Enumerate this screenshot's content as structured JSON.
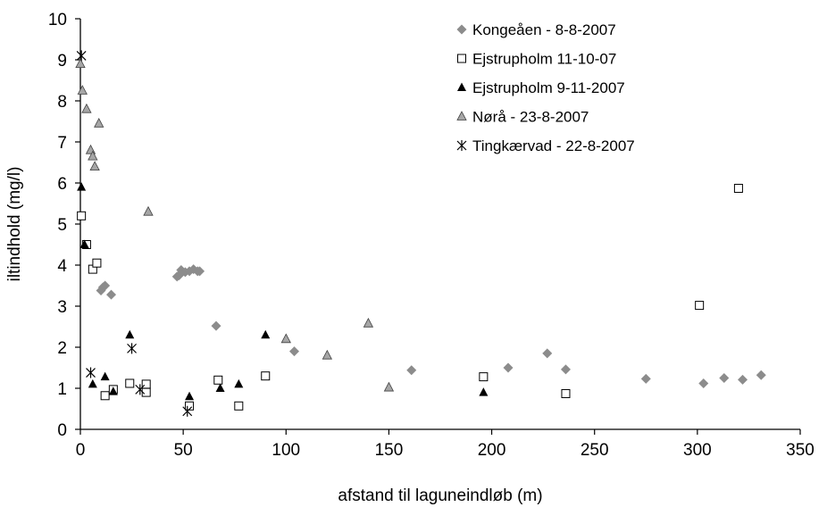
{
  "chart_data": {
    "type": "scatter",
    "xlabel": "afstand til laguneindløb (m)",
    "ylabel": "iltindhold (mg/l)",
    "xlim": [
      0,
      350
    ],
    "ylim": [
      0,
      10
    ],
    "x_ticks": [
      "0",
      "50",
      "100",
      "150",
      "200",
      "250",
      "300",
      "350"
    ],
    "y_ticks": [
      "0",
      "1",
      "2",
      "3",
      "4",
      "5",
      "6",
      "7",
      "8",
      "9",
      "10"
    ],
    "grid": false,
    "legend_position": "top-right",
    "series": [
      {
        "name": "Kongeåen - 8-8-2007",
        "marker": "diamond",
        "color": "#8c8c8c",
        "points": [
          [
            10,
            3.38
          ],
          [
            11,
            3.46
          ],
          [
            12,
            3.5
          ],
          [
            15,
            3.28
          ],
          [
            47,
            3.72
          ],
          [
            48,
            3.75
          ],
          [
            49,
            3.88
          ],
          [
            51,
            3.83
          ],
          [
            53,
            3.85
          ],
          [
            55,
            3.9
          ],
          [
            57,
            3.85
          ],
          [
            58,
            3.85
          ],
          [
            66,
            2.52
          ],
          [
            104,
            1.9
          ],
          [
            161,
            1.44
          ],
          [
            208,
            1.5
          ],
          [
            227,
            1.85
          ],
          [
            236,
            1.46
          ],
          [
            275,
            1.23
          ],
          [
            303,
            1.12
          ],
          [
            313,
            1.25
          ],
          [
            322,
            1.21
          ],
          [
            331,
            1.32
          ]
        ]
      },
      {
        "name": "Ejstrupholm 11-10-07",
        "marker": "square-open",
        "color": "#000000",
        "points": [
          [
            0.5,
            5.2
          ],
          [
            3,
            4.5
          ],
          [
            6,
            3.9
          ],
          [
            8,
            4.05
          ],
          [
            12,
            0.82
          ],
          [
            16,
            0.97
          ],
          [
            24,
            1.12
          ],
          [
            32,
            1.1
          ],
          [
            32,
            0.9
          ],
          [
            53,
            0.57
          ],
          [
            67,
            1.2
          ],
          [
            77,
            0.57
          ],
          [
            90,
            1.3
          ],
          [
            196,
            1.28
          ],
          [
            236,
            0.87
          ],
          [
            301,
            3.02
          ],
          [
            320,
            5.87
          ]
        ]
      },
      {
        "name": "Ejstrupholm 9-11-2007",
        "marker": "triangle-filled",
        "color": "#000000",
        "points": [
          [
            0.5,
            5.9
          ],
          [
            2,
            4.5
          ],
          [
            6,
            1.1
          ],
          [
            12,
            1.28
          ],
          [
            16,
            0.92
          ],
          [
            24,
            2.3
          ],
          [
            53,
            0.8
          ],
          [
            68,
            1.0
          ],
          [
            77,
            1.1
          ],
          [
            90,
            2.3
          ],
          [
            196,
            0.9
          ]
        ]
      },
      {
        "name": "Nørå - 23-8-2007",
        "marker": "triangle-gray",
        "color": "#a6a6a6",
        "points": [
          [
            0,
            8.9
          ],
          [
            1,
            8.25
          ],
          [
            3,
            7.8
          ],
          [
            5,
            6.8
          ],
          [
            6,
            6.65
          ],
          [
            7,
            6.4
          ],
          [
            9,
            7.45
          ],
          [
            33,
            5.3
          ],
          [
            100,
            2.2
          ],
          [
            120,
            1.8
          ],
          [
            140,
            2.58
          ],
          [
            150,
            1.02
          ]
        ]
      },
      {
        "name": "Tingkærvad - 22-8-2007",
        "marker": "asterisk",
        "color": "#000000",
        "points": [
          [
            0.5,
            9.1
          ],
          [
            5,
            1.38
          ],
          [
            25,
            1.97
          ],
          [
            29,
            0.97
          ],
          [
            52,
            0.44
          ]
        ]
      }
    ]
  }
}
